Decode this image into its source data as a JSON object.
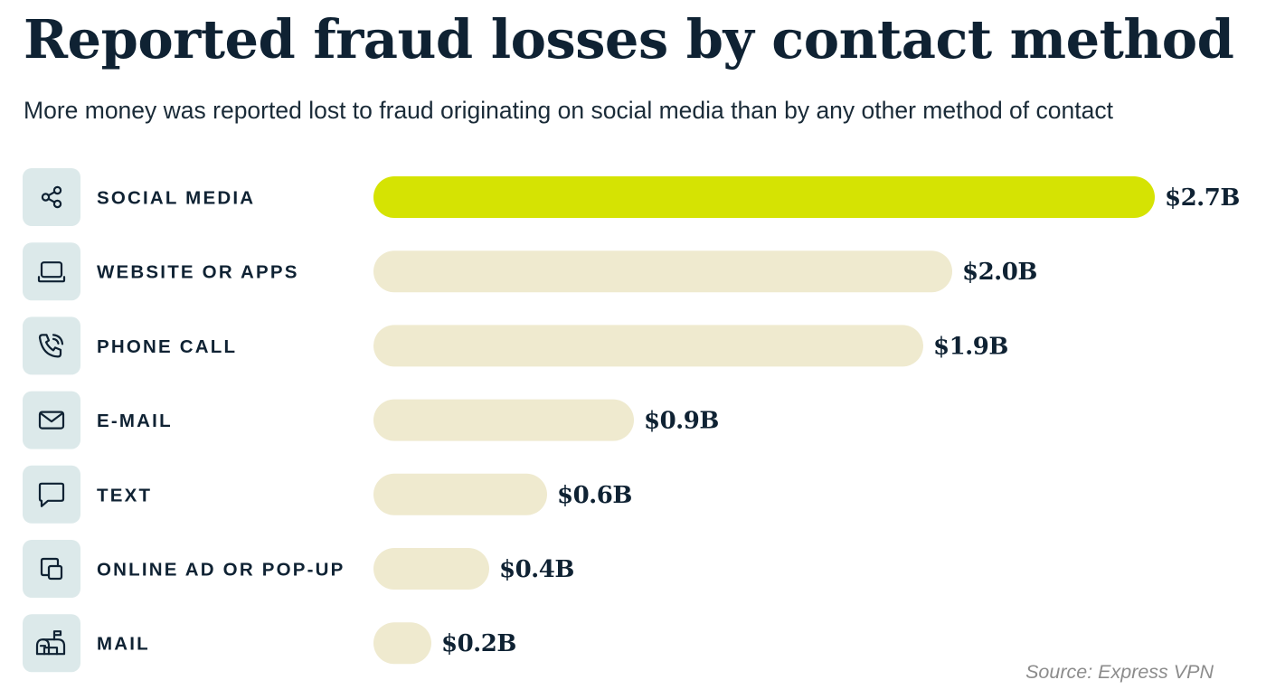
{
  "title": "Reported fraud losses by contact method",
  "subtitle": "More money was reported lost to fraud originating on social media than by any other method of contact",
  "source": "Source: Express VPN",
  "colors": {
    "highlight_bar": "#d5e303",
    "bar": "#efeacf",
    "icon_tile": "#dce9ea",
    "text": "#0f2233"
  },
  "chart_data": {
    "type": "bar",
    "orientation": "horizontal",
    "categories": [
      "SOCIAL MEDIA",
      "WEBSITE OR APPS",
      "PHONE CALL",
      "E-MAIL",
      "TEXT",
      "ONLINE AD OR POP-UP",
      "MAIL"
    ],
    "values": [
      2.7,
      2.0,
      1.9,
      0.9,
      0.6,
      0.4,
      0.2
    ],
    "value_labels": [
      "$2.7B",
      "$2.0B",
      "$1.9B",
      "$0.9B",
      "$0.6B",
      "$0.4B",
      "$0.2B"
    ],
    "icons": [
      "share-icon",
      "laptop-icon",
      "phone-call-icon",
      "mail-icon",
      "chat-bubble-icon",
      "copy-icon",
      "mailbox-icon"
    ],
    "highlight_index": 0,
    "unit": "billion USD",
    "grid": false,
    "legend": "none"
  }
}
